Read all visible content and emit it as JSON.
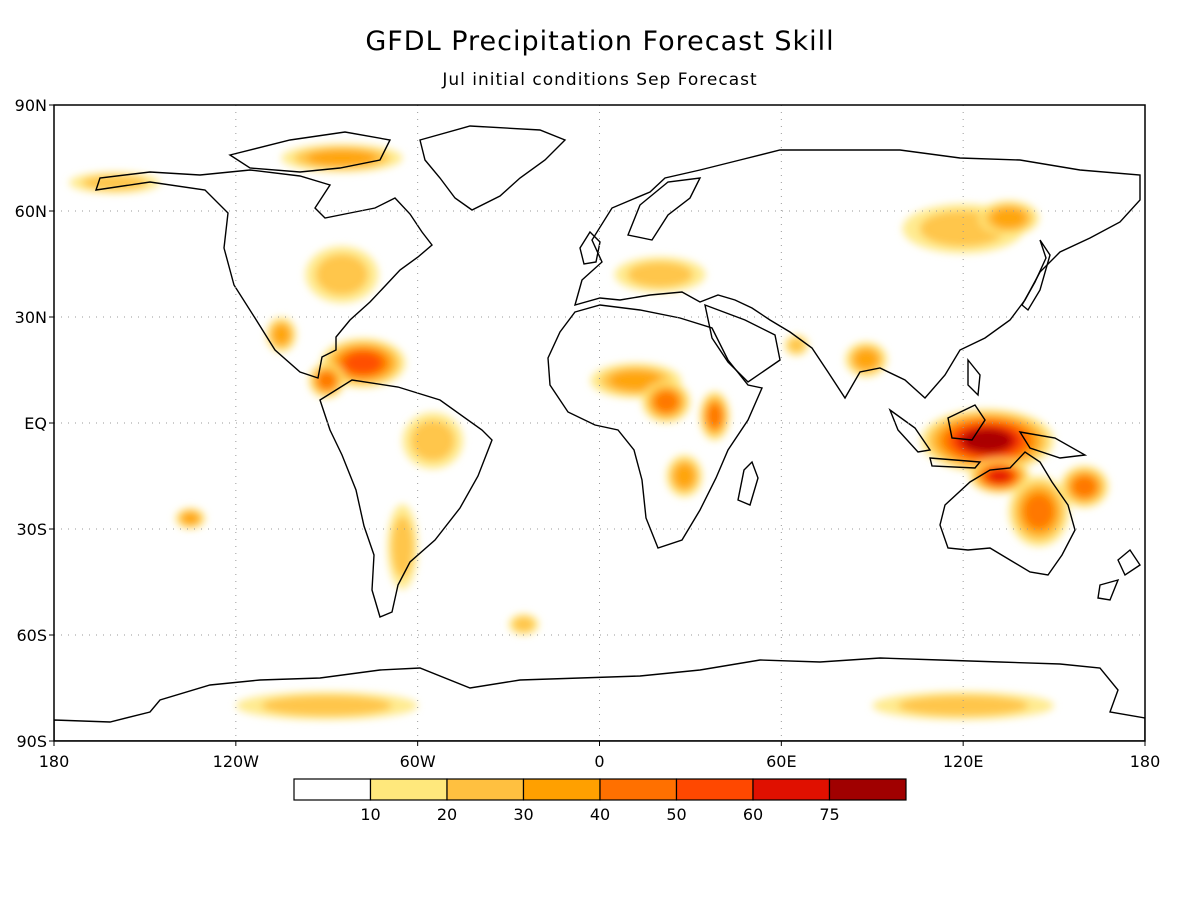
{
  "map": {
    "title": "GFDL Precipitation Forecast Skill",
    "subtitle": "Jul initial conditions  Sep Forecast",
    "projection": "equirectangular",
    "lon_range": [
      -180,
      180
    ],
    "lat_range": [
      -90,
      90
    ],
    "lat_ticks": [
      {
        "value": 90,
        "label": "90N"
      },
      {
        "value": 60,
        "label": "60N"
      },
      {
        "value": 30,
        "label": "30N"
      },
      {
        "value": 0,
        "label": "EQ"
      },
      {
        "value": -30,
        "label": "30S"
      },
      {
        "value": -60,
        "label": "60S"
      },
      {
        "value": -90,
        "label": "90S"
      }
    ],
    "lon_ticks": [
      {
        "value": -180,
        "label": "180"
      },
      {
        "value": -120,
        "label": "120W"
      },
      {
        "value": -60,
        "label": "60W"
      },
      {
        "value": 0,
        "label": "0"
      },
      {
        "value": 60,
        "label": "60E"
      },
      {
        "value": 120,
        "label": "120E"
      },
      {
        "value": 180,
        "label": "180"
      }
    ],
    "grid": "dotted",
    "colorbar": {
      "colors": [
        "#ffffff",
        "#ffe87c",
        "#ffc040",
        "#ffa000",
        "#ff7000",
        "#ff4800",
        "#e01000",
        "#a00000"
      ],
      "labels": [
        "10",
        "20",
        "30",
        "40",
        "50",
        "60",
        "75"
      ]
    },
    "skill_regions": [
      {
        "name": "maritime-continent",
        "lon": 128,
        "lat": -5,
        "rx": 22,
        "ry": 9,
        "level": 7
      },
      {
        "name": "north-australia",
        "lon": 132,
        "lat": -15,
        "rx": 10,
        "ry": 5,
        "level": 6
      },
      {
        "name": "east-australia",
        "lon": 145,
        "lat": -25,
        "rx": 10,
        "ry": 10,
        "level": 4
      },
      {
        "name": "coral-sea",
        "lon": 160,
        "lat": -18,
        "rx": 8,
        "ry": 6,
        "level": 4
      },
      {
        "name": "caribbean",
        "lon": -78,
        "lat": 17,
        "rx": 14,
        "ry": 7,
        "level": 5
      },
      {
        "name": "central-america",
        "lon": -90,
        "lat": 12,
        "rx": 6,
        "ry": 5,
        "level": 4
      },
      {
        "name": "amazon",
        "lon": -55,
        "lat": -5,
        "rx": 10,
        "ry": 8,
        "level": 2
      },
      {
        "name": "south-america-south",
        "lon": -65,
        "lat": -35,
        "rx": 5,
        "ry": 12,
        "level": 2
      },
      {
        "name": "sahel",
        "lon": 12,
        "lat": 12,
        "rx": 15,
        "ry": 5,
        "level": 3
      },
      {
        "name": "central-africa",
        "lon": 22,
        "lat": 6,
        "rx": 8,
        "ry": 6,
        "level": 4
      },
      {
        "name": "east-africa",
        "lon": 38,
        "lat": 2,
        "rx": 5,
        "ry": 7,
        "level": 4
      },
      {
        "name": "southern-africa",
        "lon": 28,
        "lat": -15,
        "rx": 6,
        "ry": 6,
        "level": 3
      },
      {
        "name": "india-bay",
        "lon": 88,
        "lat": 18,
        "rx": 7,
        "ry": 5,
        "level": 3
      },
      {
        "name": "arabian-sea",
        "lon": 65,
        "lat": 22,
        "rx": 4,
        "ry": 3,
        "level": 2
      },
      {
        "name": "siberia",
        "lon": 120,
        "lat": 55,
        "rx": 20,
        "ry": 7,
        "level": 2
      },
      {
        "name": "east-asia",
        "lon": 135,
        "lat": 58,
        "rx": 10,
        "ry": 5,
        "level": 3
      },
      {
        "name": "europe",
        "lon": 20,
        "lat": 42,
        "rx": 15,
        "ry": 5,
        "level": 2
      },
      {
        "name": "canada-arctic",
        "lon": -85,
        "lat": 75,
        "rx": 20,
        "ry": 4,
        "level": 3
      },
      {
        "name": "alaska",
        "lon": -160,
        "lat": 68,
        "rx": 15,
        "ry": 3,
        "level": 2
      },
      {
        "name": "north-america-east",
        "lon": -85,
        "lat": 42,
        "rx": 12,
        "ry": 8,
        "level": 2
      },
      {
        "name": "mexico",
        "lon": -105,
        "lat": 25,
        "rx": 5,
        "ry": 5,
        "level": 3
      },
      {
        "name": "pacific-south",
        "lon": -135,
        "lat": -27,
        "rx": 5,
        "ry": 3,
        "level": 3
      },
      {
        "name": "antarctica-west",
        "lon": -90,
        "lat": -80,
        "rx": 30,
        "ry": 4,
        "level": 2
      },
      {
        "name": "antarctica-east",
        "lon": 120,
        "lat": -80,
        "rx": 30,
        "ry": 4,
        "level": 2
      },
      {
        "name": "south-atlantic",
        "lon": -25,
        "lat": -57,
        "rx": 5,
        "ry": 3,
        "level": 2
      }
    ]
  }
}
